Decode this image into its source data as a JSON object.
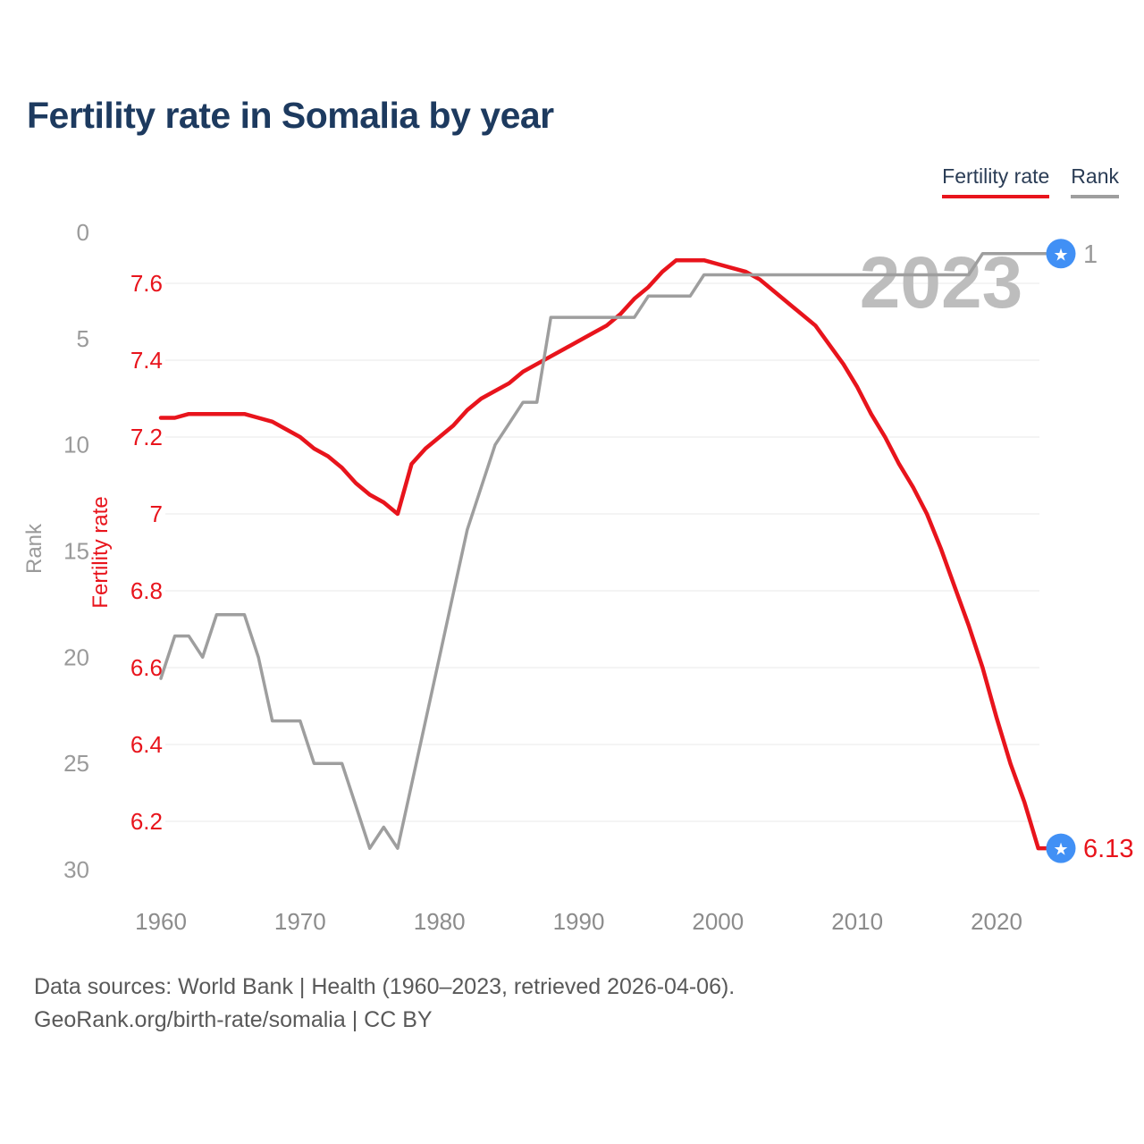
{
  "title": "Fertility rate in Somalia by year",
  "watermark": "2023",
  "marker_color": "#4190f5",
  "legend": [
    {
      "label": "Fertility rate",
      "color": "#e8141c"
    },
    {
      "label": "Rank",
      "color": "#9e9e9e"
    }
  ],
  "footer": {
    "line1": "Data sources: World Bank | Health (1960–2023, retrieved 2026-04-06).",
    "line2": "GeoRank.org/birth-rate/somalia | CC BY"
  },
  "chart_data": {
    "type": "line",
    "title": "Fertility rate in Somalia by year",
    "grid": "horizontal-only",
    "legend_position": "top-right",
    "x": [
      1960,
      1961,
      1962,
      1963,
      1964,
      1965,
      1966,
      1967,
      1968,
      1969,
      1970,
      1971,
      1972,
      1973,
      1974,
      1975,
      1976,
      1977,
      1978,
      1979,
      1980,
      1981,
      1982,
      1983,
      1984,
      1985,
      1986,
      1987,
      1988,
      1989,
      1990,
      1991,
      1992,
      1993,
      1994,
      1995,
      1996,
      1997,
      1998,
      1999,
      2000,
      2001,
      2002,
      2003,
      2004,
      2005,
      2006,
      2007,
      2008,
      2009,
      2010,
      2011,
      2012,
      2013,
      2014,
      2015,
      2016,
      2017,
      2018,
      2019,
      2020,
      2021,
      2022,
      2023
    ],
    "series": [
      {
        "name": "Fertility rate",
        "axis": "fertility",
        "color": "#e8141c",
        "values": [
          7.25,
          7.25,
          7.26,
          7.26,
          7.26,
          7.26,
          7.26,
          7.25,
          7.24,
          7.22,
          7.2,
          7.17,
          7.15,
          7.12,
          7.08,
          7.05,
          7.03,
          7.0,
          7.13,
          7.17,
          7.2,
          7.23,
          7.27,
          7.3,
          7.32,
          7.34,
          7.37,
          7.39,
          7.41,
          7.43,
          7.45,
          7.47,
          7.49,
          7.52,
          7.56,
          7.59,
          7.63,
          7.66,
          7.66,
          7.66,
          7.65,
          7.64,
          7.63,
          7.61,
          7.58,
          7.55,
          7.52,
          7.49,
          7.44,
          7.39,
          7.33,
          7.26,
          7.2,
          7.13,
          7.07,
          7.0,
          6.91,
          6.81,
          6.71,
          6.6,
          6.47,
          6.35,
          6.25,
          6.13
        ]
      },
      {
        "name": "Rank",
        "axis": "rank",
        "color": "#9e9e9e",
        "values": [
          21,
          19,
          19,
          20,
          18,
          18,
          18,
          20,
          23,
          23,
          23,
          25,
          25,
          25,
          27,
          29,
          28,
          29,
          26,
          23,
          20,
          17,
          14,
          12,
          10,
          9,
          8,
          8,
          4,
          4,
          4,
          4,
          4,
          4,
          4,
          3,
          3,
          3,
          3,
          2,
          2,
          2,
          2,
          2,
          2,
          2,
          2,
          2,
          2,
          2,
          2,
          2,
          2,
          2,
          2,
          2,
          2,
          2,
          2,
          1,
          1,
          1,
          1,
          1
        ]
      }
    ],
    "axes": {
      "x": {
        "ticks": [
          1960,
          1970,
          1980,
          1990,
          2000,
          2010,
          2020
        ],
        "color": "#8c8c8c"
      },
      "fertility": {
        "label": "Fertility rate",
        "ticks": [
          7.6,
          7.4,
          7.2,
          7,
          6.8,
          6.6,
          6.4,
          6.2
        ],
        "color": "#e8141c"
      },
      "rank": {
        "label": "Rank",
        "ticks": [
          0,
          5,
          10,
          15,
          20,
          25,
          30
        ],
        "color": "#9a9a9a",
        "range": [
          0,
          30
        ]
      }
    },
    "end_labels": [
      {
        "series": "Rank",
        "text": "1",
        "color": "#9a9a9a"
      },
      {
        "series": "Fertility rate",
        "text": "6.13",
        "color": "#e8141c"
      }
    ]
  }
}
